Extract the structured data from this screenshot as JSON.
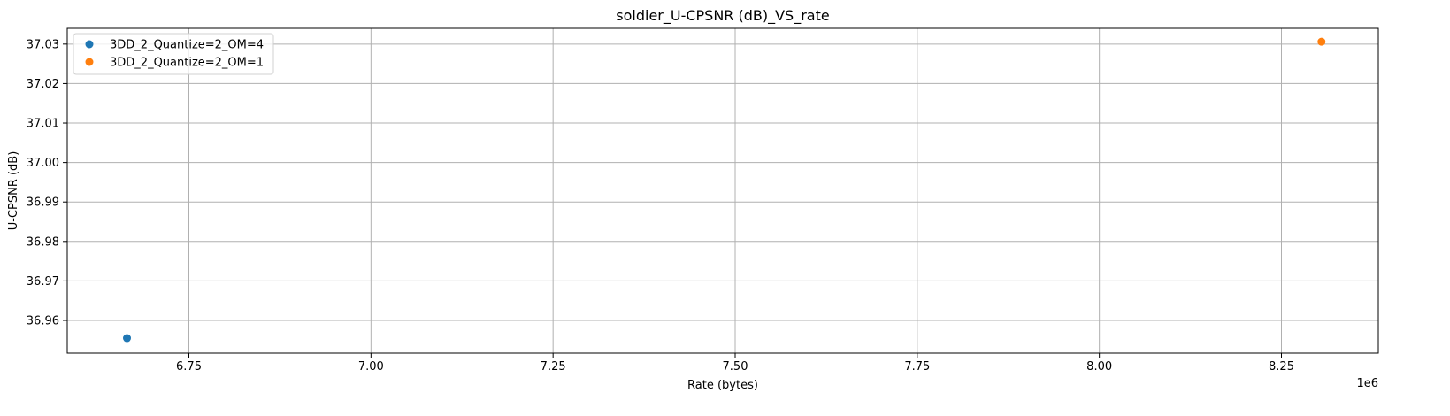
{
  "chart_data": {
    "type": "scatter",
    "title": "soldier_U-CPSNR (dB)_VS_rate",
    "xlabel": "Rate (bytes)",
    "ylabel": "U-CPSNR (dB)",
    "x_offset_label": "1e6",
    "x_scale": 1000000,
    "xlim": [
      6.583,
      8.383
    ],
    "ylim": [
      36.9517,
      37.034
    ],
    "x_ticks": [
      6.75,
      7.0,
      7.25,
      7.5,
      7.75,
      8.0,
      8.25
    ],
    "x_tick_labels": [
      "6.75",
      "7.00",
      "7.25",
      "7.50",
      "7.75",
      "8.00",
      "8.25"
    ],
    "y_ticks": [
      36.96,
      36.97,
      36.98,
      36.99,
      37.0,
      37.01,
      37.02,
      37.03
    ],
    "y_tick_labels": [
      "36.96",
      "36.97",
      "36.98",
      "36.99",
      "37.00",
      "37.01",
      "37.02",
      "37.03"
    ],
    "grid": true,
    "legend_position": "top-left",
    "series": [
      {
        "name": "3DD_2_Quantize=2_OM=4",
        "color": "#1f77b4",
        "points": [
          {
            "x": 6.665,
            "y": 36.9555
          }
        ]
      },
      {
        "name": "3DD_2_Quantize=2_OM=1",
        "color": "#ff7f0e",
        "points": [
          {
            "x": 8.305,
            "y": 37.0306
          }
        ]
      }
    ]
  }
}
